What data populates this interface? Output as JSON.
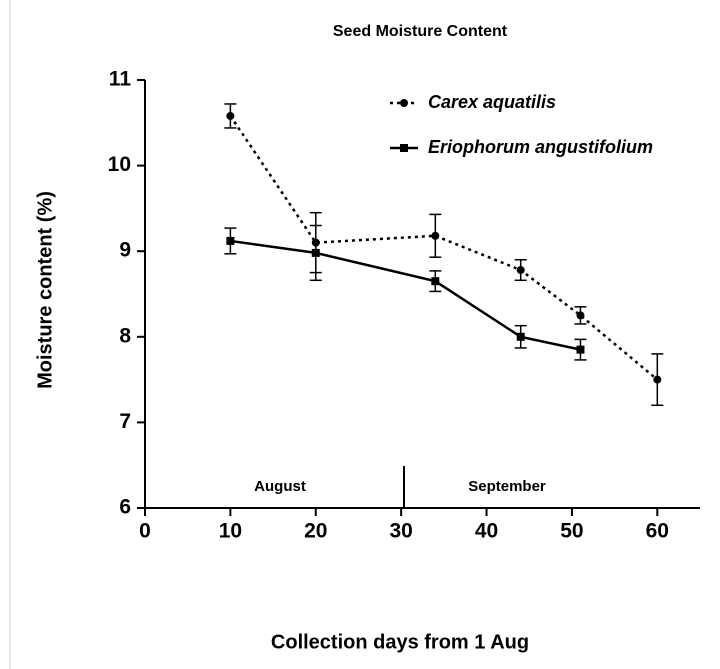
{
  "chart_data": {
    "type": "line",
    "title": "Seed Moisture Content",
    "xlabel": "Collection days from 1 Aug",
    "ylabel": "Moisture content (%)",
    "annotations": [
      "August",
      "September"
    ],
    "xlim": [
      0,
      65
    ],
    "xticks": [
      0,
      10,
      20,
      30,
      40,
      50,
      60
    ],
    "ylim": [
      6,
      11
    ],
    "yticks": [
      6,
      7,
      8,
      9,
      10,
      11
    ],
    "legend": "upper right",
    "series": [
      {
        "name": "Carex aquatilis",
        "color": "#000000",
        "linestyle": "dotted",
        "marker": "circle",
        "x": [
          10,
          20,
          34,
          44,
          51,
          60
        ],
        "values": [
          10.58,
          9.1,
          9.18,
          8.78,
          8.25,
          7.5
        ],
        "errors": [
          0.14,
          0.35,
          0.25,
          0.12,
          0.1,
          0.3
        ]
      },
      {
        "name": "Eriophorum angustifolium",
        "color": "#000000",
        "linestyle": "solid",
        "marker": "square",
        "x": [
          10,
          20,
          34,
          44,
          51
        ],
        "values": [
          9.12,
          8.98,
          8.65,
          8.0,
          7.85
        ],
        "errors": [
          0.15,
          0.32,
          0.12,
          0.13,
          0.12
        ]
      }
    ]
  }
}
